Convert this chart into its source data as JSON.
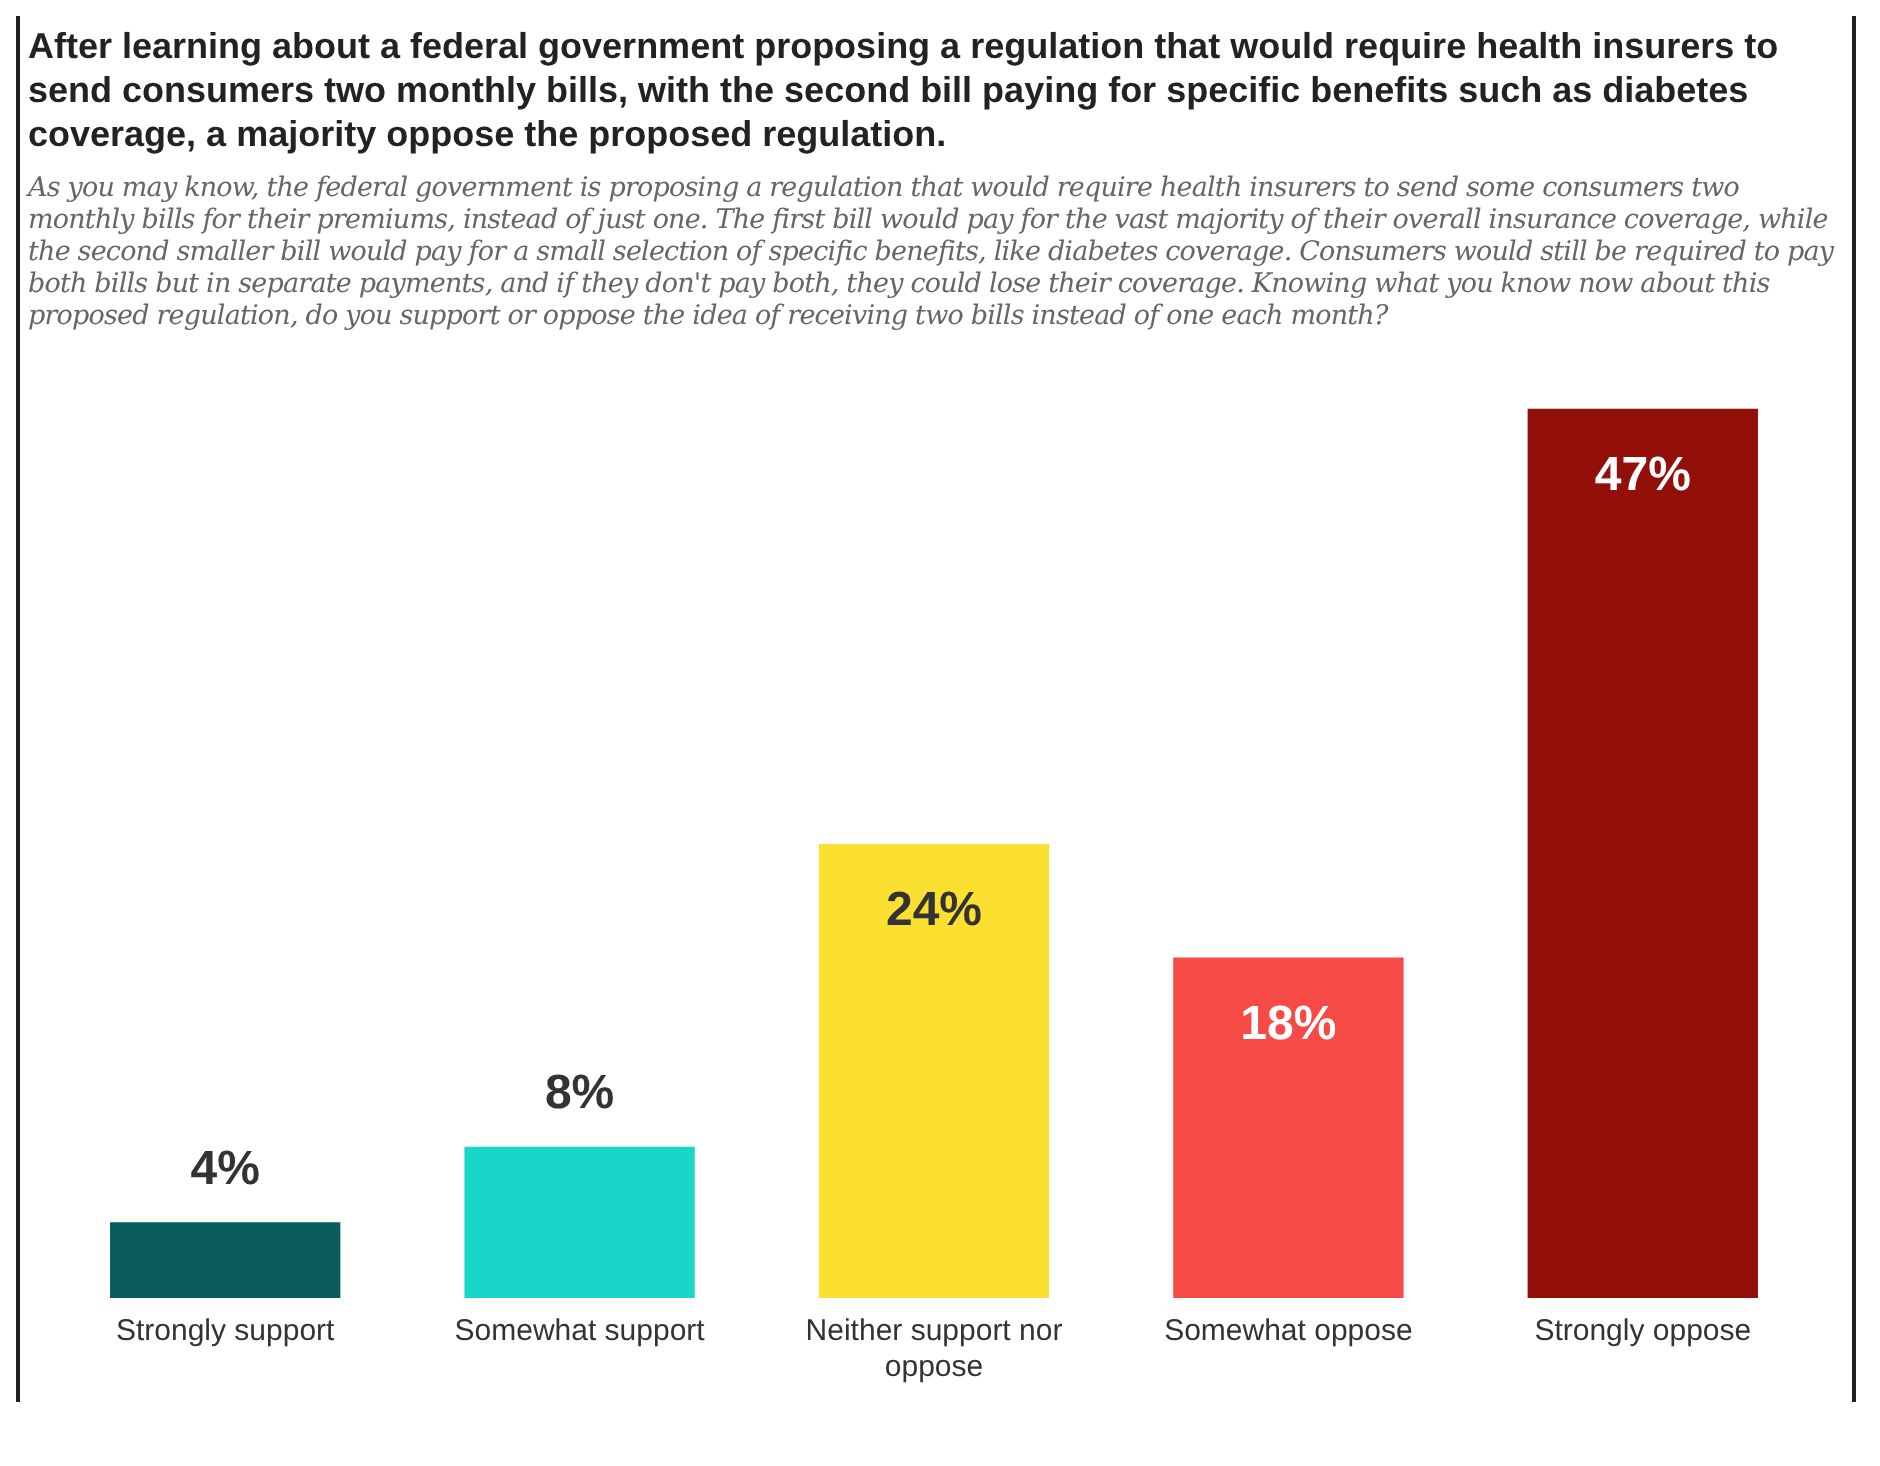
{
  "chart_data": {
    "type": "bar",
    "title": "After learning about a federal government proposing a regulation that would require health insurers to send consumers two monthly bills, with the second bill paying for specific benefits such as diabetes coverage, a majority oppose the proposed regulation.",
    "subtitle": "As you may know, the federal government is proposing a regulation that would require health insurers to send some consumers two monthly bills for their premiums, instead of just one. The first bill would pay for the vast majority of their overall insurance coverage, while the second smaller bill would pay for a small selection of specific benefits, like diabetes coverage. Consumers would still be required to pay both bills but in separate payments, and if they don't pay both, they could lose their coverage. Knowing what you know now about this proposed regulation, do you support or oppose the idea of receiving two bills instead of one each month?",
    "categories": [
      "Strongly support",
      "Somewhat support",
      "Neither support nor oppose",
      "Somewhat oppose",
      "Strongly oppose"
    ],
    "values": [
      4,
      8,
      24,
      18,
      47
    ],
    "value_labels": [
      "4%",
      "8%",
      "24%",
      "18%",
      "47%"
    ],
    "colors": [
      "#0b5c5c",
      "#1ad6c8",
      "#fbe032",
      "#f54a45",
      "#930f0a"
    ],
    "grid": false,
    "legend": false,
    "tick_labels": "x"
  }
}
